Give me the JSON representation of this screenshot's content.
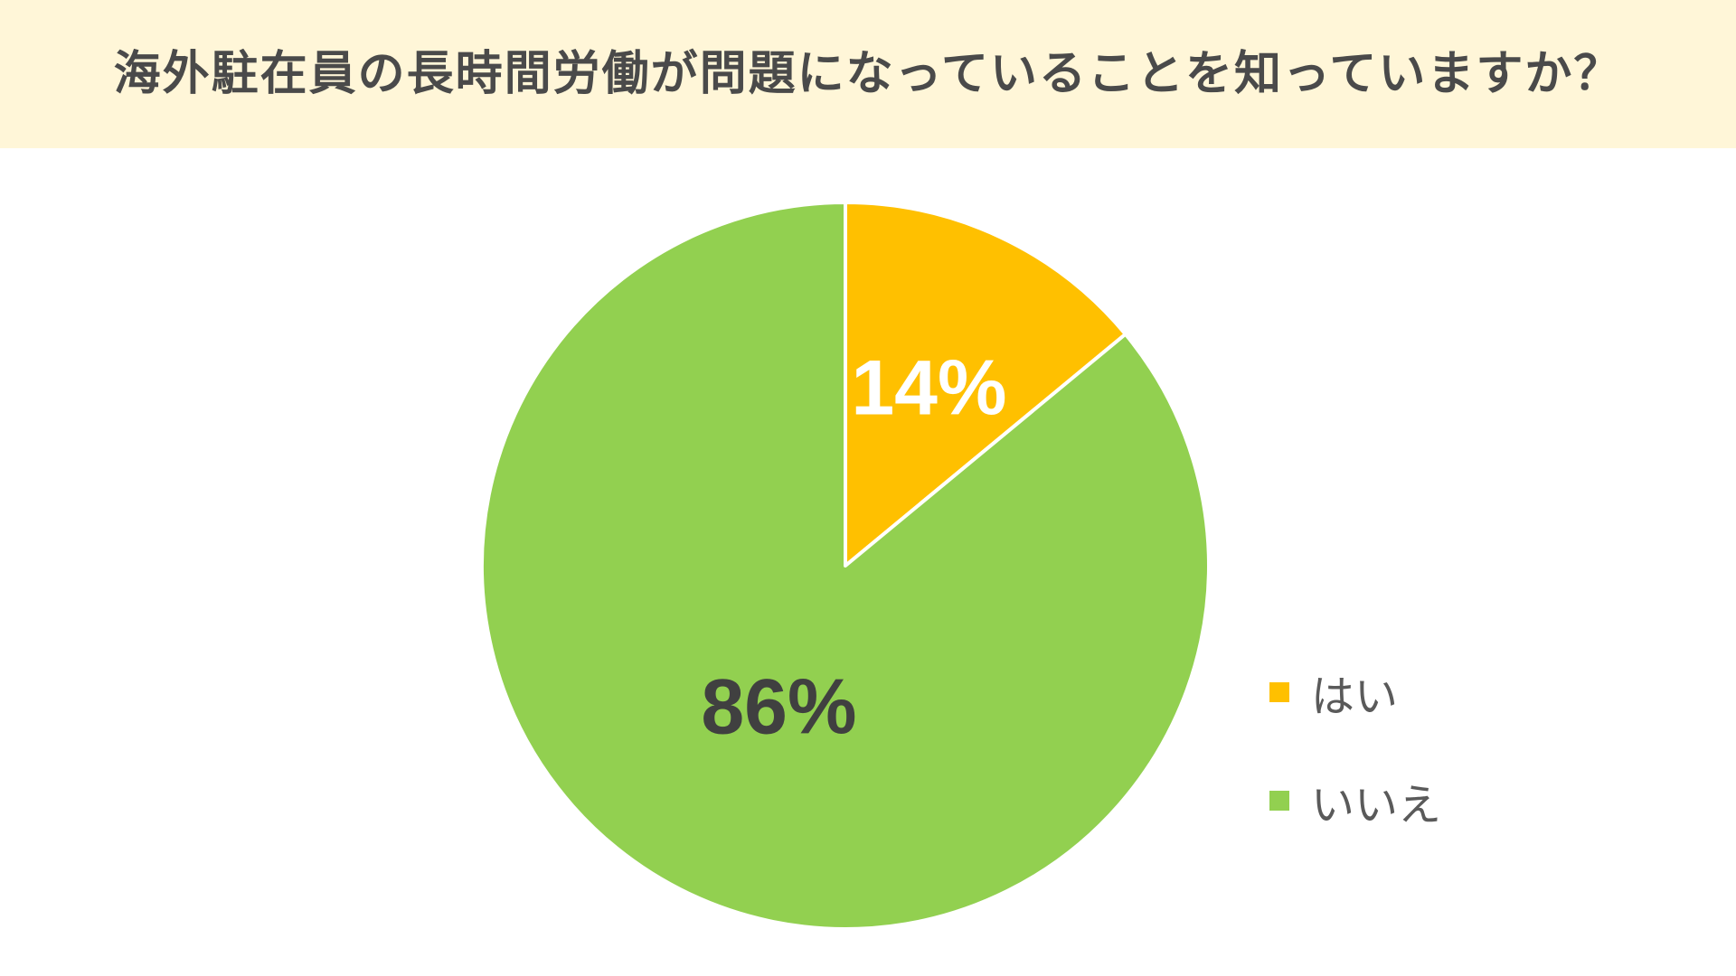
{
  "title": "海外駐在員の長時間労働が問題になっていることを知っていますか？",
  "chart_data": {
    "type": "pie",
    "title": "海外駐在員の長時間労働が問題になっていることを知っていますか？",
    "start_angle_deg": 0,
    "direction": "clockwise",
    "slices": [
      {
        "label": "はい",
        "value": 14,
        "display": "14%",
        "color": "#ffc000",
        "label_color": "#ffffff"
      },
      {
        "label": "いいえ",
        "value": 86,
        "display": "86%",
        "color": "#92d050",
        "label_color": "#404040"
      }
    ],
    "legend": {
      "position": "bottom-right",
      "items": [
        {
          "label": "はい",
          "color": "#ffc000"
        },
        {
          "label": "いいえ",
          "color": "#92d050"
        }
      ]
    }
  }
}
